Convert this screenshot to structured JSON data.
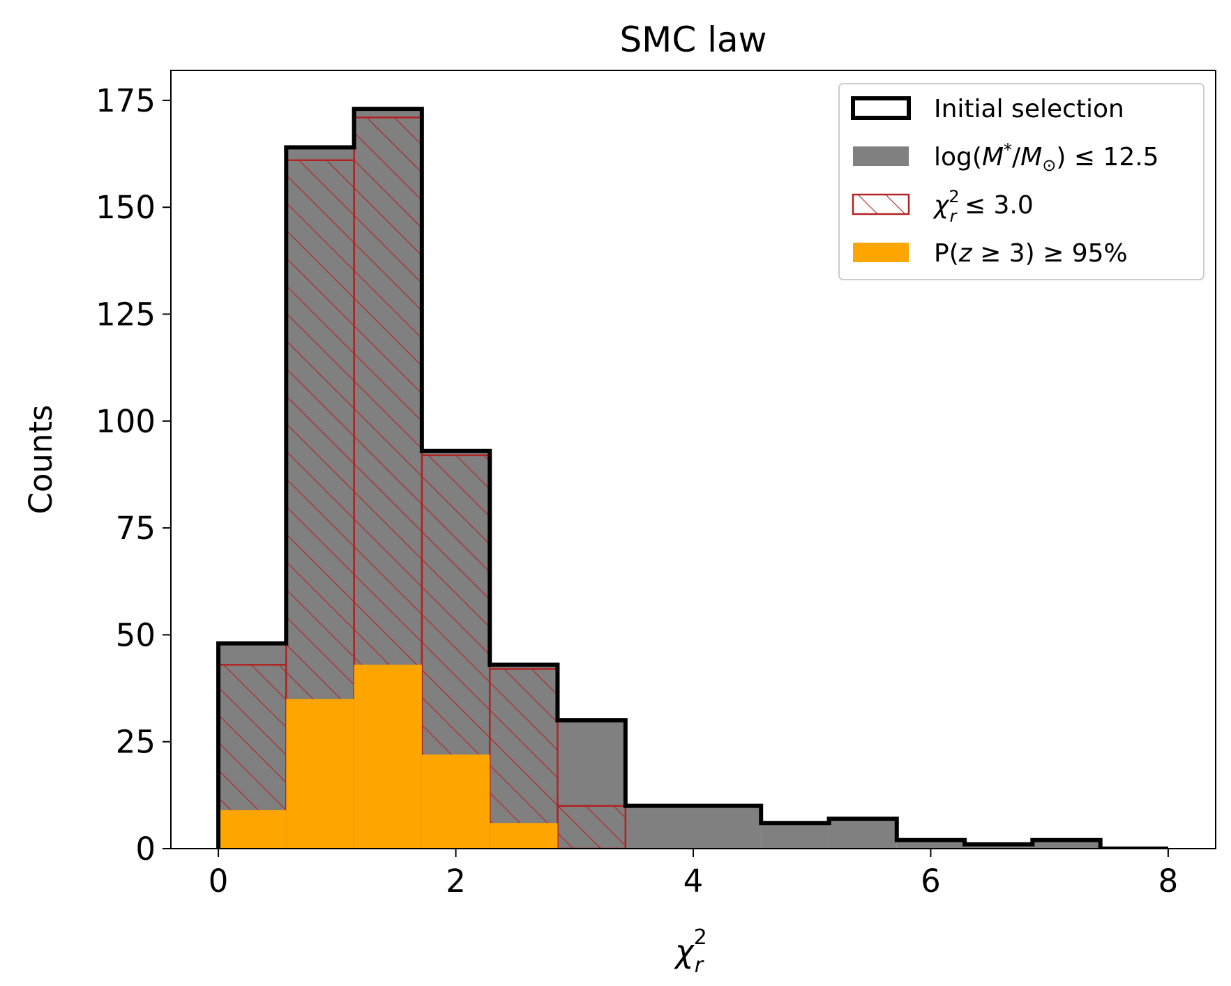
{
  "chart_data": {
    "type": "histogram",
    "title": "SMC law",
    "xlabel": "χ²_r",
    "ylabel": "Counts",
    "xlim": [
      -0.4,
      8.4
    ],
    "ylim": [
      0,
      182
    ],
    "xticks": [
      0,
      2,
      4,
      6,
      8
    ],
    "yticks": [
      0,
      25,
      50,
      75,
      100,
      125,
      150,
      175
    ],
    "bin_edges": [
      0,
      0.571,
      1.143,
      1.714,
      2.286,
      2.857,
      3.429,
      4.0,
      4.571,
      5.143,
      5.714,
      6.286,
      6.857,
      7.429,
      8.0
    ],
    "legend_position": "upper right",
    "series": [
      {
        "name": "Initial selection",
        "style": "step-outline",
        "color": "#000000",
        "values": [
          48,
          164,
          173,
          93,
          43,
          30,
          10,
          10,
          6,
          7,
          2,
          1,
          2,
          0
        ]
      },
      {
        "name": "log(M*/M⊙) ≤ 12.5",
        "style": "filled",
        "color": "#808080",
        "values": [
          48,
          164,
          173,
          93,
          43,
          30,
          10,
          10,
          6,
          7,
          2,
          1,
          2,
          0
        ]
      },
      {
        "name": "χ²_r ≤ 3.0",
        "style": "hatched",
        "color": "#b22222",
        "values": [
          43,
          161,
          171,
          92,
          42,
          10,
          0,
          0,
          0,
          0,
          0,
          0,
          0,
          0
        ]
      },
      {
        "name": "P(z ≥ 3) ≥ 95%",
        "style": "filled",
        "color": "#ffa500",
        "values": [
          9,
          35,
          43,
          22,
          6,
          0,
          0,
          0,
          0,
          0,
          0,
          0,
          0,
          0
        ]
      }
    ],
    "legend": {
      "initial": "Initial selection",
      "mass": {
        "pre": "log(",
        "m": "M",
        "star": "*",
        "slash": "/",
        "m2": "M",
        "sun": "⊙",
        "post": ") ≤ 12.5"
      },
      "chi": {
        "chi": "χ",
        "sup": "2",
        "sub": "r",
        "post": " ≤ 3.0"
      },
      "pz": {
        "pre": "P(",
        "z": "z",
        "post": " ≥ 3) ≥ 95%"
      }
    },
    "xlabel_parts": {
      "chi": "χ",
      "sup": "2",
      "sub": "r"
    }
  }
}
